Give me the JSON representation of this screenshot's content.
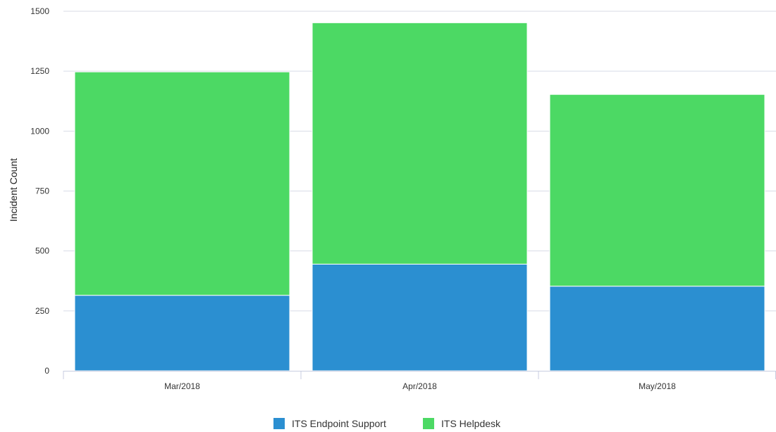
{
  "chart_data": {
    "type": "bar",
    "stacked": true,
    "categories": [
      "Mar/2018",
      "Apr/2018",
      "May/2018"
    ],
    "series": [
      {
        "name": "ITS Endpoint Support",
        "values": [
          315,
          445,
          353
        ],
        "color": "#2b8fd1"
      },
      {
        "name": "ITS Helpdesk",
        "values": [
          932,
          1007,
          800
        ],
        "color": "#4cd964"
      }
    ],
    "ylabel": "Incident Count",
    "xlabel": "",
    "ylim": [
      0,
      1500
    ],
    "yticks": [
      0,
      250,
      500,
      750,
      1000,
      1250,
      1500
    ],
    "grid": true,
    "legend": "bottom-center"
  }
}
